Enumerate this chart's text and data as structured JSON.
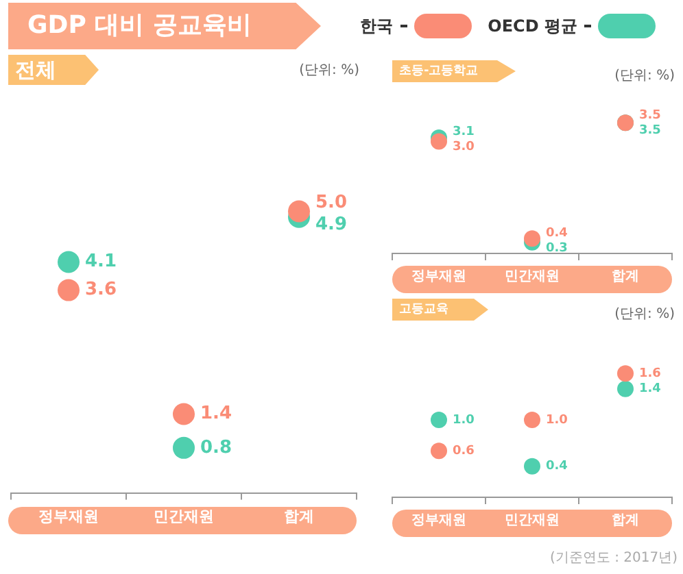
{
  "chart_data": [
    {
      "type": "scatter",
      "title": "GDP 대비 공교육비",
      "subtitle": "전체",
      "annotations": [
        "(단위: %)"
      ],
      "categories": [
        "정부재원",
        "민간재원",
        "합계"
      ],
      "tick_labels": "x",
      "grid": false,
      "legend": "top right",
      "marker": "circle",
      "data_labels": true,
      "series": [
        {
          "name": "한국",
          "color": "#fa8c76",
          "values": [
            3.6,
            1.4,
            5.0
          ],
          "value_labels": [
            "3.6",
            "1.4",
            "5.0"
          ]
        },
        {
          "name": "OECD 평균",
          "color": "#4fcfae",
          "values": [
            4.1,
            0.8,
            4.9
          ],
          "value_labels": [
            "4.1",
            "0.8",
            "4.9"
          ]
        }
      ]
    },
    {
      "type": "scatter",
      "subtitle": "초등-고등학교",
      "annotations": [
        "(단위: %)"
      ],
      "categories": [
        "정부재원",
        "민간재원",
        "합계"
      ],
      "tick_labels": "x",
      "grid": false,
      "marker": "circle",
      "data_labels": true,
      "series": [
        {
          "color": "#fa8c76",
          "values": [
            3.0,
            0.4,
            3.5
          ],
          "value_labels": [
            "3.0",
            "0.4",
            "3.5"
          ]
        },
        {
          "color": "#4fcfae",
          "values": [
            3.1,
            0.3,
            3.5
          ],
          "value_labels": [
            "3.1",
            "0.3",
            "3.5"
          ]
        }
      ]
    },
    {
      "type": "scatter",
      "subtitle": "고등교육",
      "annotations": [
        "(단위: %)",
        "(기준연도 : 2017년)"
      ],
      "categories": [
        "정부재원",
        "민간재원",
        "합계"
      ],
      "tick_labels": "x",
      "grid": false,
      "marker": "circle",
      "data_labels": true,
      "series": [
        {
          "color": "#fa8c76",
          "values": [
            0.6,
            1.0,
            1.6
          ],
          "value_labels": [
            "0.6",
            "1.0",
            "1.6"
          ]
        },
        {
          "color": "#4fcfae",
          "values": [
            1.0,
            0.4,
            1.4
          ],
          "value_labels": [
            "1.0",
            "0.4",
            "1.4"
          ]
        }
      ]
    }
  ]
}
